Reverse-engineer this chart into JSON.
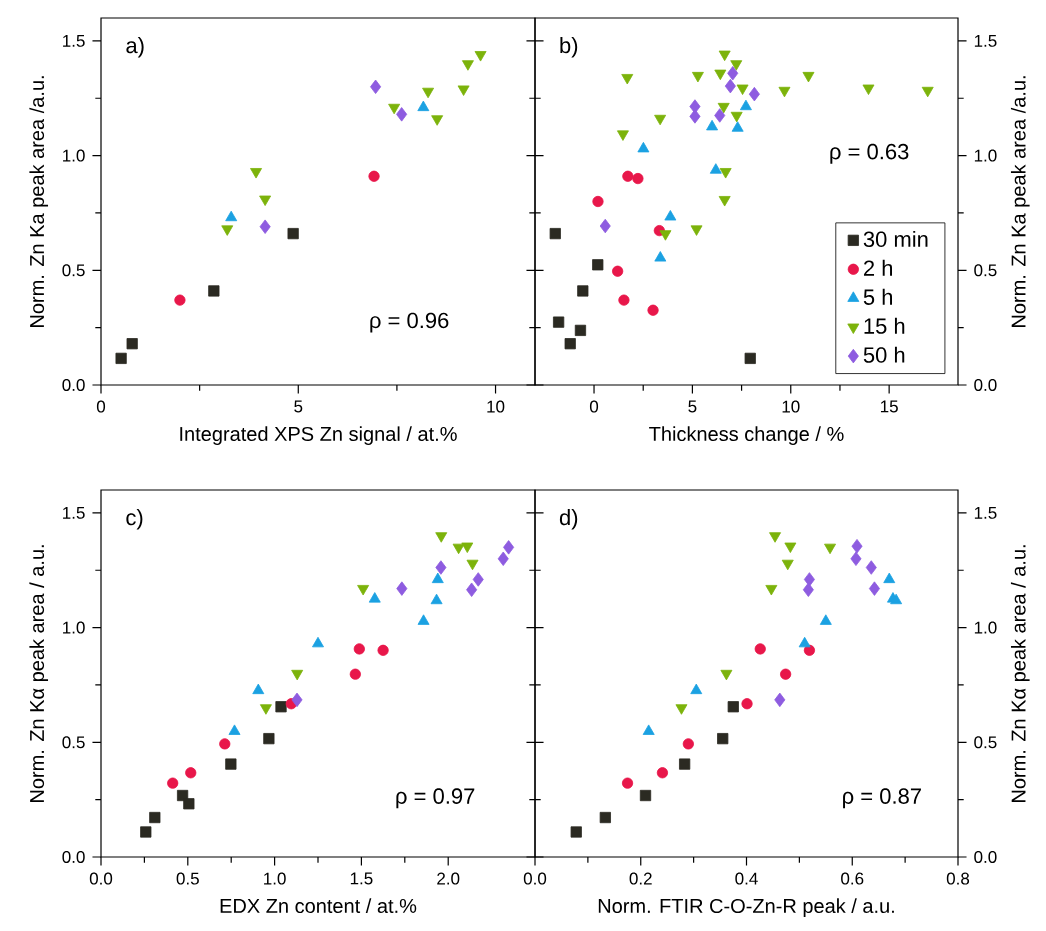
{
  "chart_data": [
    {
      "type": "scatter",
      "xlabel": "Integrated XPS Zn signal / at.%",
      "ylabel": "Norm. Zn Ka peak area /a.u.",
      "xlim": [
        0,
        11
      ],
      "ylim": [
        0,
        1.6
      ],
      "xticks": [
        0,
        5,
        10
      ],
      "yticks": [
        {
          "value": 0,
          "label": "0.0"
        },
        {
          "value": 0.5,
          "label": "0.5"
        },
        {
          "value": 1,
          "label": "1.0"
        },
        {
          "value": 1.5,
          "label": "1.5"
        }
      ],
      "annotations": [
        "a)",
        "ρ = 0.96"
      ],
      "legend": false,
      "series": [
        {
          "color": "#2b2a22",
          "marker": "square",
          "x": [
            0.51,
            0.79,
            2.86,
            4.87
          ],
          "values": [
            0.116,
            0.18,
            0.41,
            0.66
          ]
        },
        {
          "color": "#e8174a",
          "marker": "circle",
          "x": [
            2.0,
            6.92
          ],
          "values": [
            0.37,
            0.91
          ]
        },
        {
          "color": "#1ba1e2",
          "marker": "triangle",
          "x": [
            3.3,
            8.17
          ],
          "values": [
            0.73,
            1.21
          ]
        },
        {
          "color": "#7cb30b",
          "marker": "triangle-down",
          "x": [
            3.2,
            3.93,
            4.16,
            7.43,
            8.29,
            8.52,
            9.19,
            9.3,
            9.62
          ],
          "values": [
            0.68,
            0.93,
            0.81,
            1.21,
            1.28,
            1.16,
            1.29,
            1.4,
            1.44
          ]
        },
        {
          "color": "#8e5ce0",
          "marker": "diamond",
          "x": [
            4.16,
            6.96,
            7.62
          ],
          "values": [
            0.69,
            1.3,
            1.18
          ]
        }
      ]
    },
    {
      "type": "scatter",
      "xlabel": "Thickness change / %",
      "ylabel": "Norm. Zn Ka peak area /a.u.",
      "xlim": [
        -3,
        18.5
      ],
      "ylim": [
        0,
        1.6
      ],
      "xticks": [
        0,
        5,
        10,
        15
      ],
      "yticks": [
        {
          "value": 0,
          "label": "0.0"
        },
        {
          "value": 0.5,
          "label": "0.5"
        },
        {
          "value": 1,
          "label": "1.0"
        },
        {
          "value": 1.5,
          "label": "1.5"
        }
      ],
      "annotations": [
        "b)",
        "ρ = 0.63"
      ],
      "legend": "bottom right",
      "series": [
        {
          "name": "30 min",
          "color": "#2b2a22",
          "marker": "square",
          "x": [
            -1.97,
            -1.8,
            -1.21,
            -0.69,
            -0.57,
            0.19,
            7.94
          ],
          "values": [
            0.66,
            0.274,
            0.18,
            0.238,
            0.41,
            0.524,
            0.116
          ]
        },
        {
          "name": "2 h",
          "color": "#e8174a",
          "marker": "circle",
          "x": [
            0.2,
            1.72,
            2.23,
            1.2,
            1.52,
            3.0,
            3.32
          ],
          "values": [
            0.8,
            0.91,
            0.9,
            0.496,
            0.37,
            0.326,
            0.673
          ]
        },
        {
          "name": "5 h",
          "color": "#1ba1e2",
          "marker": "triangle",
          "x": [
            2.51,
            3.88,
            3.37,
            6.19,
            6.0,
            7.3,
            7.72
          ],
          "values": [
            1.03,
            0.733,
            0.554,
            0.937,
            1.126,
            1.12,
            1.214
          ]
        },
        {
          "name": "15 h",
          "color": "#7cb30b",
          "marker": "triangle-down",
          "x": [
            1.69,
            1.47,
            3.36,
            3.63,
            5.21,
            5.28,
            6.42,
            6.64,
            7.23,
            6.59,
            7.25,
            6.69,
            6.64,
            7.55,
            9.68,
            10.9,
            13.95,
            16.96
          ],
          "values": [
            1.34,
            1.094,
            1.162,
            0.659,
            0.68,
            1.349,
            1.359,
            1.442,
            1.4,
            1.214,
            1.175,
            0.93,
            0.808,
            1.294,
            1.284,
            1.349,
            1.294,
            1.284
          ]
        },
        {
          "name": "50 h",
          "color": "#8e5ce0",
          "marker": "diamond",
          "x": [
            0.57,
            5.13,
            5.13,
            6.39,
            6.93,
            7.05,
            8.15
          ],
          "values": [
            0.693,
            1.214,
            1.171,
            1.175,
            1.303,
            1.359,
            1.268
          ]
        }
      ]
    },
    {
      "type": "scatter",
      "xlabel": "EDX Zn content / at.%",
      "ylabel": "Norm. Zn Kα peak area / a.u.",
      "xlim": [
        0,
        2.5
      ],
      "ylim": [
        0,
        1.6
      ],
      "xticks": [
        {
          "value": 0,
          "label": "0.0"
        },
        {
          "value": 0.5,
          "label": "0.5"
        },
        {
          "value": 1,
          "label": "1.0"
        },
        {
          "value": 1.5,
          "label": "1.5"
        },
        {
          "value": 2,
          "label": "2.0"
        }
      ],
      "yticks": [
        {
          "value": 0,
          "label": "0.0"
        },
        {
          "value": 0.5,
          "label": "0.5"
        },
        {
          "value": 1,
          "label": "1.0"
        },
        {
          "value": 1.5,
          "label": "1.5"
        }
      ],
      "annotations": [
        "c)",
        "ρ = 0.97"
      ],
      "legend": false,
      "series": [
        {
          "color": "#2b2a22",
          "marker": "square",
          "x": [
            0.258,
            0.31,
            0.47,
            0.506,
            0.748,
            0.967,
            1.037
          ],
          "values": [
            0.109,
            0.172,
            0.268,
            0.232,
            0.405,
            0.516,
            0.655
          ]
        },
        {
          "color": "#e8174a",
          "marker": "circle",
          "x": [
            0.413,
            0.517,
            0.713,
            1.096,
            1.465,
            1.488,
            1.625
          ],
          "values": [
            0.322,
            0.367,
            0.493,
            0.668,
            0.797,
            0.907,
            0.901
          ]
        },
        {
          "color": "#1ba1e2",
          "marker": "triangle",
          "x": [
            0.769,
            0.906,
            1.25,
            1.577,
            1.858,
            1.933,
            1.94
          ],
          "values": [
            0.548,
            0.726,
            0.93,
            1.125,
            1.028,
            1.118,
            1.21
          ]
        },
        {
          "color": "#7cb30b",
          "marker": "triangle-down",
          "x": [
            0.95,
            1.13,
            1.51,
            1.96,
            2.06,
            2.11,
            2.14
          ],
          "values": [
            0.65,
            0.8,
            1.17,
            1.4,
            1.35,
            1.355,
            1.28
          ]
        },
        {
          "color": "#8e5ce0",
          "marker": "diamond",
          "x": [
            1.129,
            1.733,
            1.958,
            2.135,
            2.173,
            2.317,
            2.348
          ],
          "values": [
            0.685,
            1.17,
            1.262,
            1.165,
            1.21,
            1.3,
            1.35
          ]
        }
      ]
    },
    {
      "type": "scatter",
      "xlabel": "Norm. FTIR C-O-Zn-R peak / a.u.",
      "ylabel": "Norm. Zn Kα peak area / a.u.",
      "xlim": [
        0,
        0.8
      ],
      "ylim": [
        0,
        1.6
      ],
      "xticks": [
        {
          "value": 0,
          "label": "0.0"
        },
        {
          "value": 0.2,
          "label": "0.2"
        },
        {
          "value": 0.4,
          "label": "0.4"
        },
        {
          "value": 0.6,
          "label": "0.6"
        },
        {
          "value": 0.8,
          "label": "0.8"
        }
      ],
      "yticks": [
        {
          "value": 0,
          "label": "0.0"
        },
        {
          "value": 0.5,
          "label": "0.5"
        },
        {
          "value": 1,
          "label": "1.0"
        },
        {
          "value": 1.5,
          "label": "1.5"
        }
      ],
      "annotations": [
        "d)",
        "ρ = 0.87"
      ],
      "legend": false,
      "series": [
        {
          "color": "#2b2a22",
          "marker": "square",
          "x": [
            0.078,
            0.133,
            0.209,
            0.283,
            0.355,
            0.375
          ],
          "values": [
            0.109,
            0.172,
            0.268,
            0.405,
            0.516,
            0.655
          ]
        },
        {
          "color": "#e8174a",
          "marker": "circle",
          "x": [
            0.175,
            0.241,
            0.29,
            0.401,
            0.426,
            0.474,
            0.519
          ],
          "values": [
            0.322,
            0.367,
            0.493,
            0.668,
            0.907,
            0.797,
            0.901
          ]
        },
        {
          "color": "#1ba1e2",
          "marker": "triangle",
          "x": [
            0.215,
            0.305,
            0.51,
            0.55,
            0.67,
            0.677,
            0.683
          ],
          "values": [
            0.548,
            0.726,
            0.93,
            1.028,
            1.21,
            1.125,
            1.118
          ]
        },
        {
          "color": "#7cb30b",
          "marker": "triangle-down",
          "x": [
            0.277,
            0.362,
            0.447,
            0.454,
            0.478,
            0.483,
            0.558
          ],
          "values": [
            0.65,
            0.8,
            1.17,
            1.4,
            1.28,
            1.355,
            1.35
          ]
        },
        {
          "color": "#8e5ce0",
          "marker": "diamond",
          "x": [
            0.463,
            0.519,
            0.517,
            0.607,
            0.609,
            0.636,
            0.642
          ],
          "values": [
            0.685,
            1.21,
            1.165,
            1.3,
            1.355,
            1.262,
            1.17
          ]
        }
      ]
    }
  ]
}
